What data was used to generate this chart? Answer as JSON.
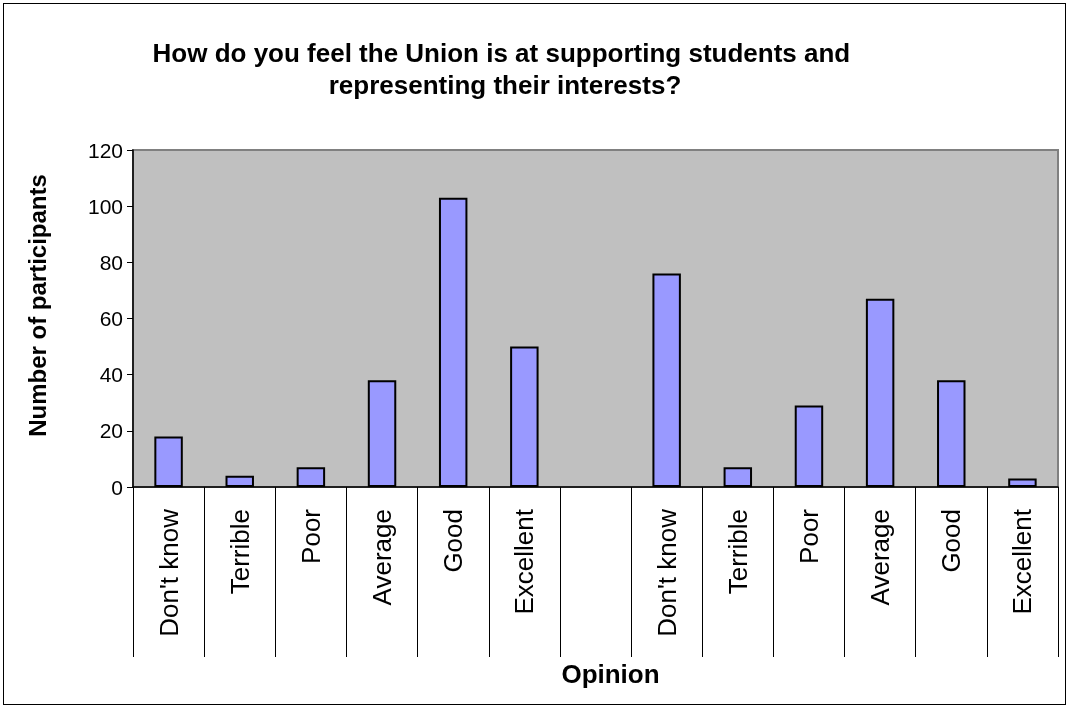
{
  "chart_data": {
    "type": "bar",
    "title": "How do you feel the Union is at supporting students and representing their interests?",
    "xlabel": "Opinion",
    "ylabel": "Number of participants",
    "categories": [
      "Don't know",
      "Terrible",
      "Poor",
      "Average",
      "Good",
      "Excellent",
      null,
      "Don't know",
      "Terrible",
      "Poor",
      "Average",
      "Good",
      "Excellent"
    ],
    "values": [
      18,
      4,
      7,
      38,
      103,
      50,
      null,
      76,
      7,
      29,
      67,
      38,
      3
    ],
    "color": "#9999ff",
    "ylim": [
      0,
      120
    ],
    "yticks": [
      0,
      20,
      40,
      60,
      80,
      100,
      120
    ]
  }
}
